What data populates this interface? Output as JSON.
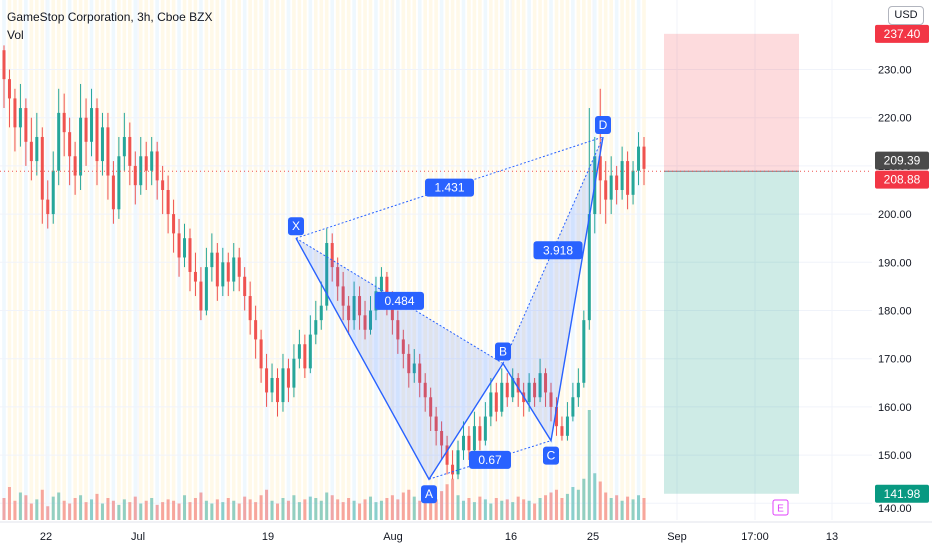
{
  "header": {
    "symbol_line": "GameStop Corporation, 3h, Cboe BZX",
    "vol_label": "Vol",
    "currency_button": "USD"
  },
  "colors": {
    "up": "#26a69a",
    "down": "#ef5350",
    "pattern": "#2962ff",
    "pattern_fill": "rgba(41,98,255,0.15)",
    "stop_zone": "rgba(242,54,69,0.18)",
    "target_zone": "rgba(8,153,129,0.2)"
  },
  "chart_data": {
    "type": "candlestick",
    "y_axis": {
      "range": [
        136,
        244
      ],
      "ticks": [
        140,
        150,
        160,
        170,
        180,
        190,
        200,
        210,
        220,
        230
      ],
      "tick_labels": [
        "140.00",
        "150.00",
        "160.00",
        "170.00",
        "180.00",
        "190.00",
        "200.00",
        "210.00",
        "220.00",
        "230.00"
      ]
    },
    "x_axis": {
      "ticks": [
        "22",
        "Jul",
        "19",
        "Aug",
        "16",
        "25",
        "Sep",
        "17:00",
        "13"
      ]
    },
    "price_labels": [
      {
        "value": 237.4,
        "text": "237.40",
        "style": "stop"
      },
      {
        "value": 209.39,
        "text": "209.39",
        "style": "last"
      },
      {
        "value": 208.88,
        "text": "208.88",
        "style": "current"
      },
      {
        "value": 141.98,
        "text": "141.98",
        "style": "target"
      }
    ],
    "harmonic_pattern": {
      "points": [
        {
          "name": "X",
          "price": 195.0
        },
        {
          "name": "A",
          "price": 145.0
        },
        {
          "name": "B",
          "price": 169.0
        },
        {
          "name": "C",
          "price": 153.0
        },
        {
          "name": "D",
          "price": 216.0
        }
      ],
      "ratios": [
        {
          "legs": "XA-AB",
          "value": "0.484"
        },
        {
          "legs": "AB-BC",
          "value": "0.67"
        },
        {
          "legs": "BC-CD",
          "value": "3.918"
        },
        {
          "legs": "XA-AD",
          "value": "1.431"
        }
      ]
    },
    "short_position": {
      "entry": 208.88,
      "stop": 237.4,
      "target": 141.98
    },
    "event_marker": "E",
    "candles": [
      [
        234.0,
        228.0,
        235.0,
        222.0
      ],
      [
        228.0,
        224.0,
        230.0,
        218.0
      ],
      [
        224.0,
        218.0,
        226.0,
        213.0
      ],
      [
        218.0,
        222.0,
        227.0,
        214.0
      ],
      [
        222.0,
        215.0,
        224.0,
        210.0
      ],
      [
        215.0,
        211.0,
        220.0,
        207.0
      ],
      [
        211.0,
        216.0,
        221.0,
        208.0
      ],
      [
        216.0,
        203.0,
        218.0,
        198.0
      ],
      [
        203.0,
        200.0,
        207.0,
        197.0
      ],
      [
        200.0,
        209.0,
        213.0,
        198.0
      ],
      [
        209.0,
        221.0,
        226.0,
        206.0
      ],
      [
        221.0,
        217.0,
        225.0,
        212.0
      ],
      [
        217.0,
        212.0,
        220.0,
        206.0
      ],
      [
        212.0,
        208.0,
        215.0,
        204.0
      ],
      [
        208.0,
        220.0,
        227.0,
        205.0
      ],
      [
        220.0,
        215.0,
        224.0,
        210.0
      ],
      [
        215.0,
        222.0,
        226.0,
        212.0
      ],
      [
        222.0,
        211.0,
        224.0,
        206.0
      ],
      [
        211.0,
        218.0,
        221.0,
        208.0
      ],
      [
        218.0,
        208.0,
        221.0,
        203.0
      ],
      [
        208.0,
        201.0,
        211.0,
        198.0
      ],
      [
        201.0,
        212.0,
        216.0,
        199.0
      ],
      [
        212.0,
        216.0,
        221.0,
        209.0
      ],
      [
        216.0,
        210.0,
        219.0,
        206.0
      ],
      [
        210.0,
        206.0,
        213.0,
        202.0
      ],
      [
        206.0,
        212.0,
        216.0,
        204.0
      ],
      [
        212.0,
        209.0,
        215.0,
        205.0
      ],
      [
        209.0,
        213.0,
        216.0,
        206.0
      ],
      [
        213.0,
        207.0,
        215.0,
        203.0
      ],
      [
        207.0,
        205.0,
        210.0,
        200.0
      ],
      [
        205.0,
        200.0,
        208.0,
        196.0
      ],
      [
        200.0,
        196.0,
        203.0,
        192.0
      ],
      [
        196.0,
        191.0,
        199.0,
        187.0
      ],
      [
        191.0,
        195.0,
        198.0,
        189.0
      ],
      [
        195.0,
        188.0,
        197.0,
        184.0
      ],
      [
        188.0,
        186.0,
        192.0,
        183.0
      ],
      [
        186.0,
        180.0,
        189.0,
        178.0
      ],
      [
        180.0,
        189.0,
        193.0,
        179.0
      ],
      [
        189.0,
        192.0,
        196.0,
        186.0
      ],
      [
        192.0,
        185.0,
        194.0,
        182.0
      ],
      [
        185.0,
        190.0,
        193.0,
        183.0
      ],
      [
        190.0,
        186.0,
        192.0,
        183.0
      ],
      [
        186.0,
        191.0,
        194.0,
        184.0
      ],
      [
        191.0,
        187.0,
        193.0,
        184.0
      ],
      [
        187.0,
        183.0,
        189.0,
        180.0
      ],
      [
        183.0,
        178.0,
        186.0,
        175.0
      ],
      [
        178.0,
        174.0,
        181.0,
        170.0
      ],
      [
        174.0,
        168.0,
        176.0,
        165.0
      ],
      [
        168.0,
        163.0,
        171.0,
        160.0
      ],
      [
        163.0,
        166.0,
        169.0,
        161.0
      ],
      [
        166.0,
        161.0,
        168.0,
        158.0
      ],
      [
        161.0,
        168.0,
        171.0,
        159.0
      ],
      [
        168.0,
        164.0,
        170.0,
        161.0
      ],
      [
        164.0,
        170.0,
        173.0,
        162.0
      ],
      [
        170.0,
        173.0,
        176.0,
        168.0
      ],
      [
        173.0,
        168.0,
        175.0,
        166.0
      ],
      [
        168.0,
        175.0,
        179.0,
        167.0
      ],
      [
        175.0,
        178.0,
        182.0,
        173.0
      ],
      [
        178.0,
        181.0,
        186.0,
        176.0
      ],
      [
        181.0,
        194.0,
        197.0,
        180.0
      ],
      [
        194.0,
        189.0,
        196.0,
        186.0
      ],
      [
        189.0,
        185.0,
        191.0,
        182.0
      ],
      [
        185.0,
        181.0,
        188.0,
        178.0
      ],
      [
        181.0,
        178.0,
        183.0,
        175.0
      ],
      [
        178.0,
        183.0,
        186.0,
        176.0
      ],
      [
        183.0,
        179.0,
        185.0,
        176.0
      ],
      [
        179.0,
        176.0,
        182.0,
        174.0
      ],
      [
        176.0,
        180.0,
        183.0,
        175.0
      ],
      [
        180.0,
        184.0,
        187.0,
        178.0
      ],
      [
        184.0,
        187.0,
        189.0,
        182.0
      ],
      [
        187.0,
        182.0,
        188.0,
        179.0
      ],
      [
        182.0,
        178.0,
        184.0,
        175.0
      ],
      [
        178.0,
        174.0,
        180.0,
        171.0
      ],
      [
        174.0,
        171.0,
        176.0,
        168.0
      ],
      [
        171.0,
        167.0,
        173.0,
        164.0
      ],
      [
        167.0,
        169.0,
        172.0,
        165.0
      ],
      [
        169.0,
        165.0,
        171.0,
        162.0
      ],
      [
        165.0,
        162.0,
        167.0,
        159.0
      ],
      [
        162.0,
        158.0,
        164.0,
        155.0
      ],
      [
        158.0,
        155.0,
        160.0,
        152.0
      ],
      [
        155.0,
        152.0,
        157.0,
        149.0
      ],
      [
        152.0,
        148.0,
        154.0,
        146.0
      ],
      [
        148.0,
        146.0,
        151.0,
        145.0
      ],
      [
        146.0,
        151.0,
        153.0,
        145.0
      ],
      [
        151.0,
        154.0,
        157.0,
        149.0
      ],
      [
        154.0,
        151.0,
        156.0,
        149.0
      ],
      [
        151.0,
        156.0,
        159.0,
        150.0
      ],
      [
        156.0,
        153.0,
        158.0,
        151.0
      ],
      [
        153.0,
        158.0,
        161.0,
        152.0
      ],
      [
        158.0,
        163.0,
        166.0,
        156.0
      ],
      [
        163.0,
        159.0,
        165.0,
        157.0
      ],
      [
        159.0,
        165.0,
        168.0,
        158.0
      ],
      [
        165.0,
        162.0,
        167.0,
        160.0
      ],
      [
        162.0,
        166.0,
        168.0,
        161.0
      ],
      [
        166.0,
        163.0,
        167.0,
        160.0
      ],
      [
        163.0,
        161.0,
        165.0,
        158.0
      ],
      [
        161.0,
        165.0,
        167.0,
        159.0
      ],
      [
        165.0,
        162.0,
        166.0,
        160.0
      ],
      [
        162.0,
        167.0,
        170.0,
        161.0
      ],
      [
        167.0,
        163.0,
        168.0,
        160.0
      ],
      [
        163.0,
        160.0,
        165.0,
        157.0
      ],
      [
        160.0,
        156.0,
        162.0,
        154.0
      ],
      [
        156.0,
        154.0,
        158.0,
        153.0
      ],
      [
        154.0,
        158.0,
        161.0,
        153.0
      ],
      [
        158.0,
        162.0,
        165.0,
        157.0
      ],
      [
        162.0,
        165.0,
        168.0,
        160.0
      ],
      [
        165.0,
        178.0,
        180.0,
        164.0
      ],
      [
        178.0,
        200.0,
        222.0,
        176.0
      ],
      [
        200.0,
        212.0,
        216.0,
        196.0
      ],
      [
        212.0,
        207.0,
        226.0,
        200.0
      ],
      [
        207.0,
        203.0,
        211.0,
        198.0
      ],
      [
        203.0,
        208.0,
        212.0,
        200.0
      ],
      [
        208.0,
        205.0,
        210.0,
        202.0
      ],
      [
        205.0,
        211.0,
        214.0,
        203.0
      ],
      [
        211.0,
        204.0,
        213.0,
        201.0
      ],
      [
        204.0,
        209.0,
        211.0,
        202.0
      ],
      [
        209.0,
        214.0,
        217.0,
        206.0
      ],
      [
        214.0,
        209.39,
        216.0,
        206.0
      ]
    ],
    "volume": [
      16,
      24,
      14,
      20,
      18,
      12,
      15,
      22,
      10,
      17,
      20,
      14,
      12,
      16,
      18,
      13,
      15,
      19,
      12,
      16,
      14,
      11,
      15,
      13,
      17,
      12,
      14,
      16,
      11,
      13,
      15,
      14,
      12,
      18,
      13,
      16,
      20,
      14,
      12,
      15,
      13,
      16,
      14,
      12,
      17,
      15,
      13,
      18,
      22,
      14,
      12,
      16,
      14,
      18,
      13,
      15,
      17,
      16,
      14,
      20,
      18,
      15,
      13,
      16,
      14,
      12,
      15,
      17,
      13,
      14,
      16,
      18,
      15,
      20,
      22,
      17,
      14,
      24,
      19,
      15,
      21,
      26,
      30,
      18,
      14,
      16,
      13,
      17,
      15,
      12,
      16,
      14,
      15,
      13,
      17,
      15,
      14,
      12,
      16,
      18,
      20,
      22,
      16,
      19,
      24,
      22,
      30,
      80,
      34,
      28,
      20,
      16,
      18,
      14,
      17,
      15,
      18,
      16
    ]
  }
}
